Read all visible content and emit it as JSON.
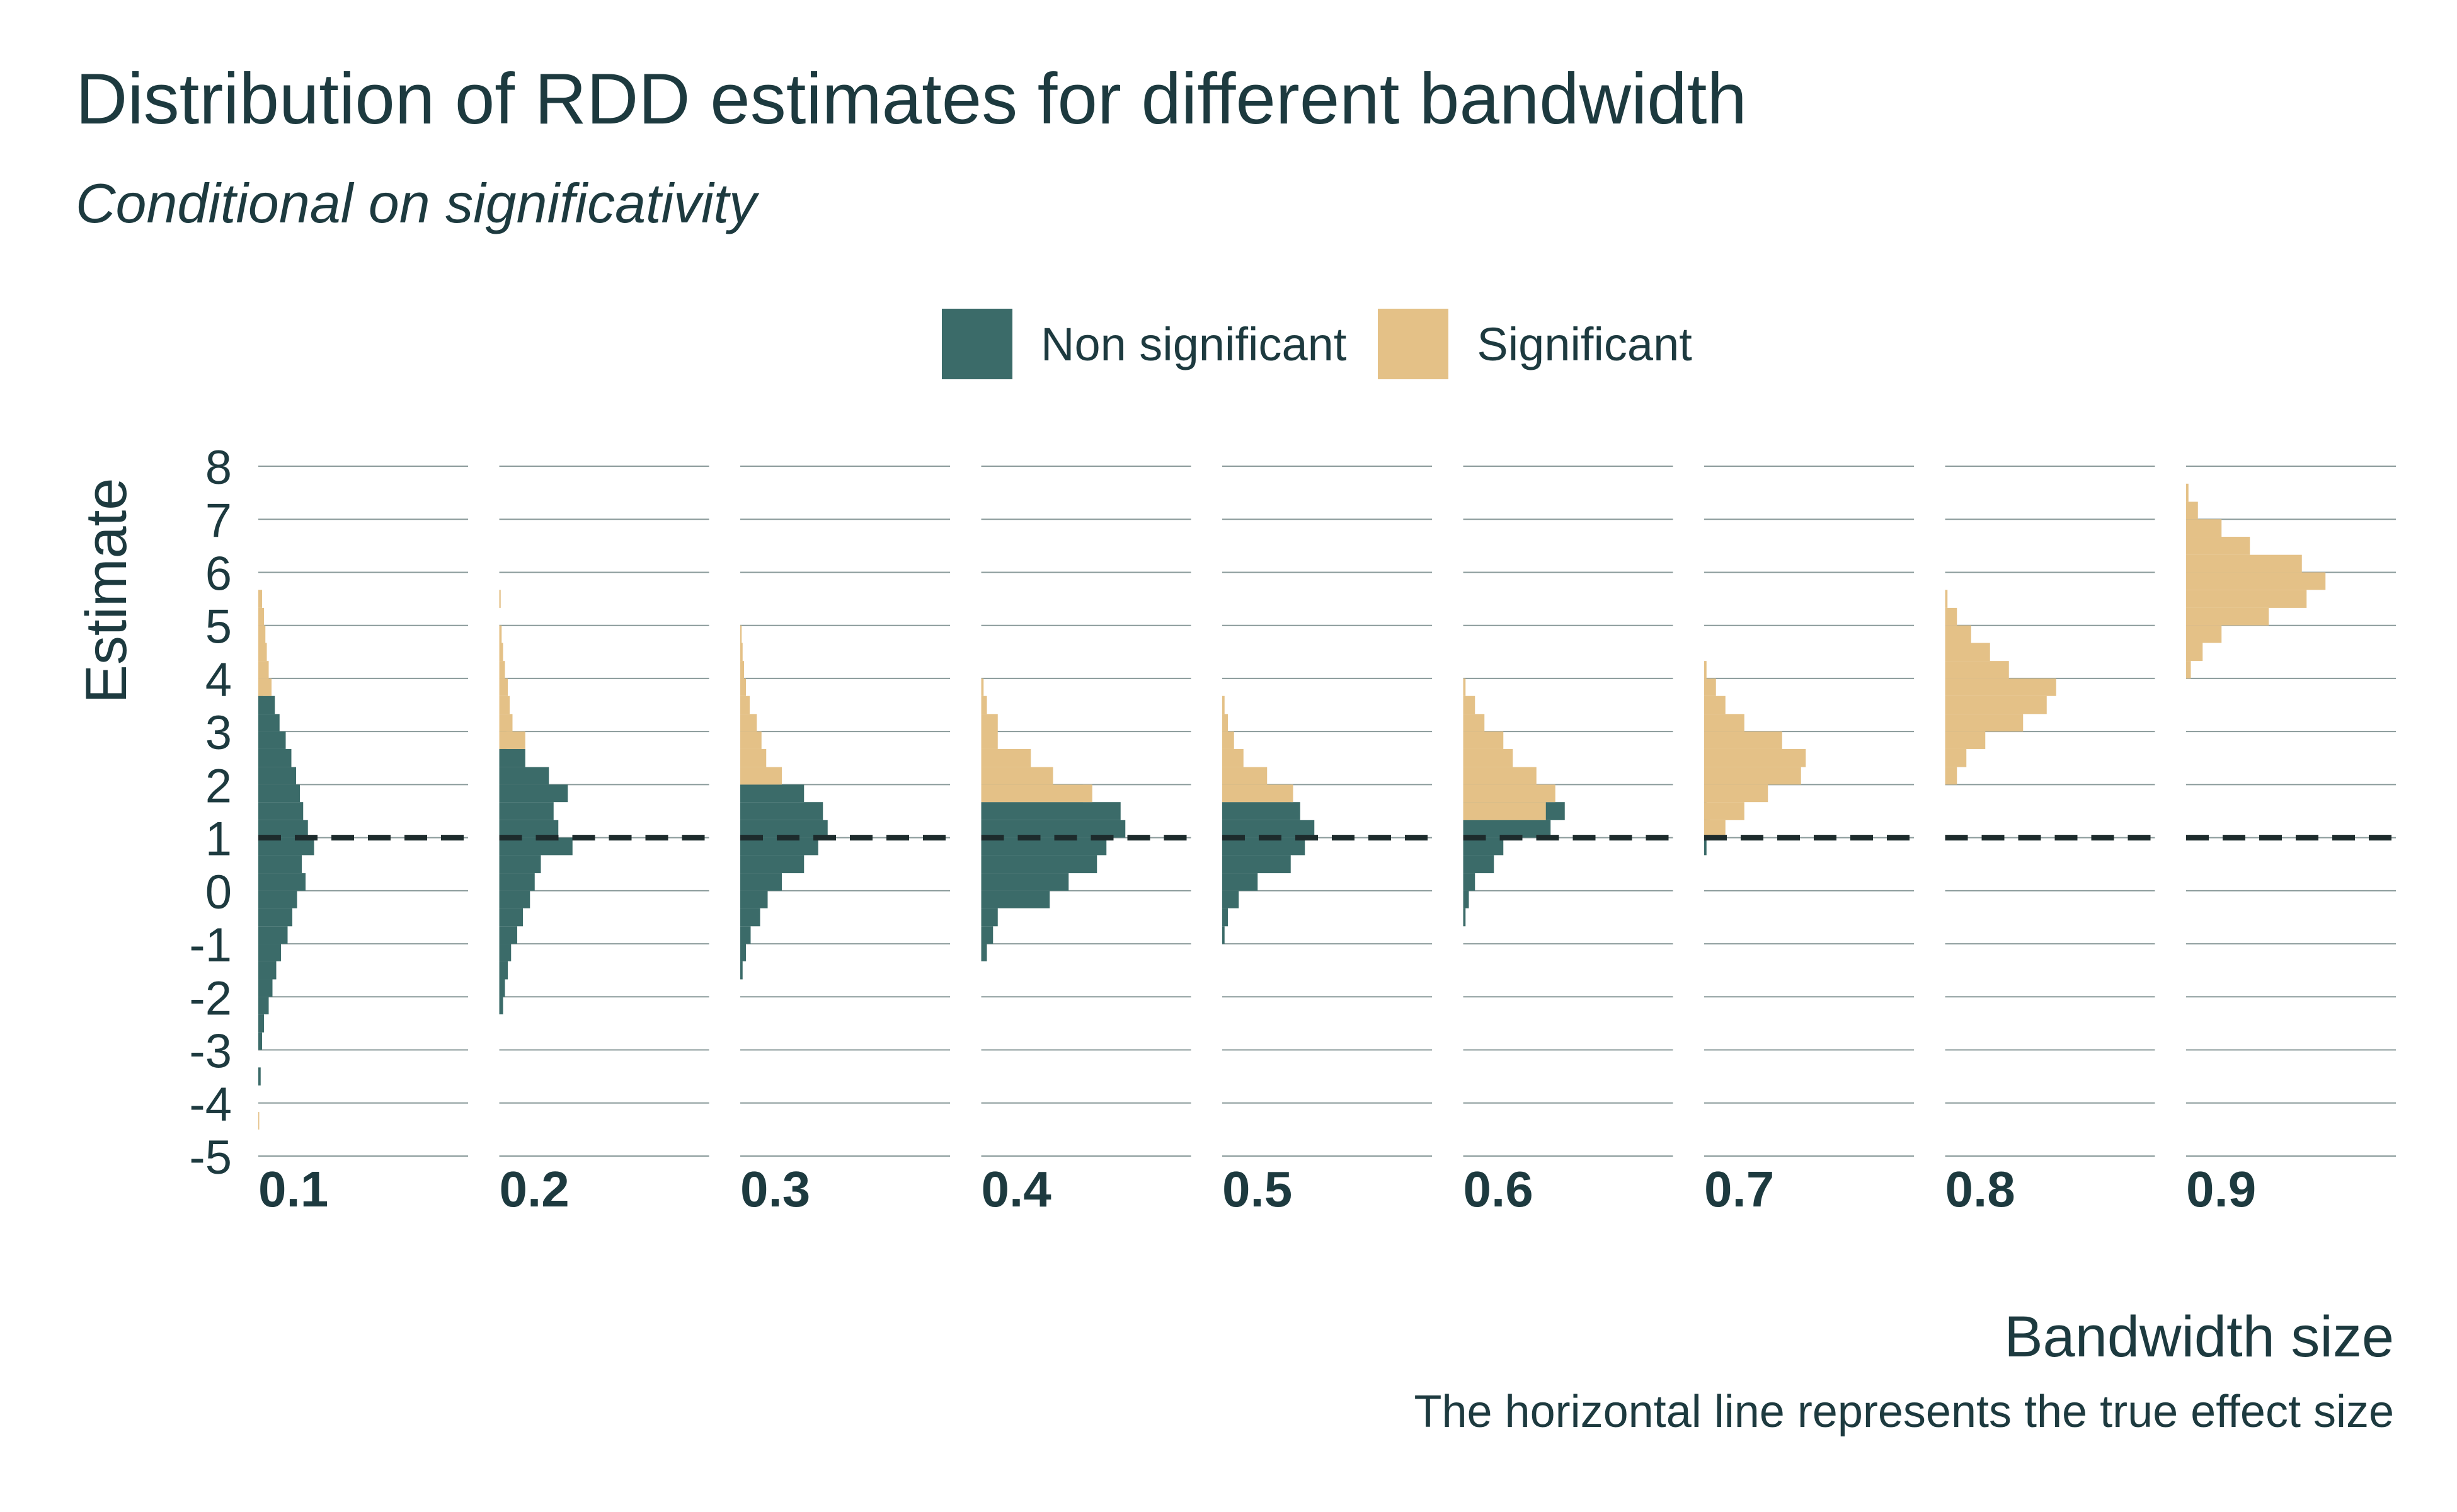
{
  "title": "Distribution of RDD estimates for different bandwidth",
  "subtitle": "Conditional on significativity",
  "legend": {
    "non_significant": "Non significant",
    "significant": "Significant"
  },
  "colors": {
    "non_significant": "#3b6b69",
    "significant": "#e4c187",
    "grid": "#8a9a9a",
    "true_effect_line": "#1d2b2c",
    "text": "#1d3a3f"
  },
  "x_title": "Bandwidth size",
  "caption": "The horizontal line represents the true effect size",
  "chart_data": {
    "type": "histogram",
    "ylabel": "Estimate",
    "xlabel": "Bandwidth size",
    "ylim": [
      -5,
      8
    ],
    "y_ticks": [
      "8",
      "7",
      "6",
      "5",
      "4",
      "3",
      "2",
      "1",
      "0",
      "-1",
      "-2",
      "-3",
      "-4",
      "-5"
    ],
    "true_effect": 1,
    "grid": true,
    "legend_position": "top",
    "bin_width": 0.333,
    "panels": [
      {
        "label": "0.1",
        "significant": [
          [
            -4.5,
            -4.17,
            0.02
          ],
          [
            5.33,
            5.67,
            0.08
          ],
          [
            5.0,
            5.33,
            0.12
          ],
          [
            4.67,
            5.0,
            0.15
          ],
          [
            4.33,
            4.67,
            0.18
          ],
          [
            4.0,
            4.33,
            0.22
          ],
          [
            3.67,
            4.0,
            0.28
          ]
        ],
        "non_significant": [
          [
            -3.67,
            -3.33,
            0.05
          ],
          [
            -3.0,
            -2.67,
            0.08
          ],
          [
            -2.67,
            -2.33,
            0.12
          ],
          [
            -2.33,
            -2.0,
            0.22
          ],
          [
            -2.0,
            -1.67,
            0.3
          ],
          [
            -1.67,
            -1.33,
            0.38
          ],
          [
            -1.33,
            -1.0,
            0.48
          ],
          [
            -1.0,
            -0.67,
            0.62
          ],
          [
            -0.67,
            -0.33,
            0.72
          ],
          [
            -0.33,
            0.0,
            0.82
          ],
          [
            0.0,
            0.33,
            1.0
          ],
          [
            0.33,
            0.67,
            0.92
          ],
          [
            0.67,
            1.0,
            1.18
          ],
          [
            1.0,
            1.33,
            1.05
          ],
          [
            1.33,
            1.67,
            0.95
          ],
          [
            1.67,
            2.0,
            0.88
          ],
          [
            2.0,
            2.33,
            0.8
          ],
          [
            2.33,
            2.67,
            0.7
          ],
          [
            2.67,
            3.0,
            0.58
          ],
          [
            3.0,
            3.33,
            0.45
          ],
          [
            3.33,
            3.67,
            0.35
          ],
          [
            3.67,
            4.0,
            0.1
          ]
        ]
      },
      {
        "label": "0.2",
        "significant": [
          [
            5.33,
            5.67,
            0.03
          ],
          [
            4.67,
            5.0,
            0.05
          ],
          [
            4.33,
            4.67,
            0.08
          ],
          [
            4.0,
            4.33,
            0.12
          ],
          [
            3.67,
            4.0,
            0.18
          ],
          [
            3.33,
            3.67,
            0.22
          ],
          [
            3.0,
            3.33,
            0.28
          ],
          [
            2.67,
            3.0,
            0.55
          ]
        ],
        "non_significant": [
          [
            -2.33,
            -2.0,
            0.08
          ],
          [
            -2.0,
            -1.67,
            0.12
          ],
          [
            -1.67,
            -1.33,
            0.18
          ],
          [
            -1.33,
            -1.0,
            0.25
          ],
          [
            -1.0,
            -0.67,
            0.38
          ],
          [
            -0.67,
            -0.33,
            0.5
          ],
          [
            -0.33,
            0.0,
            0.65
          ],
          [
            0.0,
            0.33,
            0.75
          ],
          [
            0.33,
            0.67,
            0.88
          ],
          [
            0.67,
            1.0,
            1.55
          ],
          [
            1.0,
            1.33,
            1.25
          ],
          [
            1.33,
            1.67,
            1.15
          ],
          [
            1.67,
            2.0,
            1.45
          ],
          [
            2.0,
            2.33,
            1.05
          ],
          [
            2.33,
            2.67,
            0.55
          ],
          [
            2.67,
            3.0,
            0.15
          ]
        ]
      },
      {
        "label": "0.3",
        "significant": [
          [
            4.67,
            5.0,
            0.03
          ],
          [
            4.33,
            4.67,
            0.05
          ],
          [
            4.0,
            4.33,
            0.08
          ],
          [
            3.67,
            4.0,
            0.12
          ],
          [
            3.33,
            3.67,
            0.2
          ],
          [
            3.0,
            3.33,
            0.35
          ],
          [
            2.67,
            3.0,
            0.45
          ],
          [
            2.33,
            2.67,
            0.55
          ],
          [
            2.0,
            2.33,
            0.88
          ]
        ],
        "non_significant": [
          [
            -1.67,
            -1.33,
            0.05
          ],
          [
            -1.33,
            -1.0,
            0.12
          ],
          [
            -1.0,
            -0.67,
            0.22
          ],
          [
            -0.67,
            -0.33,
            0.42
          ],
          [
            -0.33,
            0.0,
            0.58
          ],
          [
            0.0,
            0.33,
            0.88
          ],
          [
            0.33,
            0.67,
            1.35
          ],
          [
            0.67,
            1.0,
            1.65
          ],
          [
            1.0,
            1.33,
            1.85
          ],
          [
            1.33,
            1.67,
            1.75
          ],
          [
            1.67,
            2.0,
            1.35
          ]
        ]
      },
      {
        "label": "0.4",
        "significant": [
          [
            3.67,
            4.0,
            0.05
          ],
          [
            3.33,
            3.67,
            0.12
          ],
          [
            2.67,
            3.33,
            0.35
          ],
          [
            2.33,
            2.67,
            1.05
          ],
          [
            2.0,
            2.33,
            1.52
          ],
          [
            1.67,
            2.0,
            2.35
          ]
        ],
        "non_significant": [
          [
            -1.33,
            -1.0,
            0.12
          ],
          [
            -1.0,
            -0.67,
            0.25
          ],
          [
            -0.67,
            -0.33,
            0.35
          ],
          [
            -0.33,
            0.0,
            1.45
          ],
          [
            0.0,
            0.33,
            1.85
          ],
          [
            0.33,
            0.67,
            2.45
          ],
          [
            0.67,
            1.0,
            2.65
          ],
          [
            1.0,
            1.33,
            3.05
          ],
          [
            1.33,
            1.67,
            2.95
          ],
          [
            1.67,
            2.0,
            2.15
          ]
        ]
      },
      {
        "label": "0.5",
        "significant": [
          [
            3.33,
            3.67,
            0.05
          ],
          [
            3.0,
            3.33,
            0.12
          ],
          [
            2.67,
            3.0,
            0.25
          ],
          [
            2.33,
            2.67,
            0.45
          ],
          [
            2.0,
            2.33,
            0.95
          ],
          [
            1.67,
            2.0,
            1.5
          ]
        ],
        "non_significant": [
          [
            -1.0,
            -0.67,
            0.05
          ],
          [
            -0.67,
            -0.33,
            0.12
          ],
          [
            -0.33,
            0.0,
            0.35
          ],
          [
            0.0,
            0.33,
            0.75
          ],
          [
            0.33,
            0.67,
            1.45
          ],
          [
            0.67,
            1.0,
            1.75
          ],
          [
            1.0,
            1.33,
            1.95
          ],
          [
            1.33,
            1.67,
            1.65
          ],
          [
            1.67,
            2.0,
            1.45
          ]
        ]
      },
      {
        "label": "0.6",
        "significant": [
          [
            3.67,
            4.0,
            0.05
          ],
          [
            3.33,
            3.67,
            0.25
          ],
          [
            3.0,
            3.33,
            0.45
          ],
          [
            2.67,
            3.0,
            0.85
          ],
          [
            2.33,
            2.67,
            1.05
          ],
          [
            2.0,
            2.33,
            1.55
          ],
          [
            1.67,
            2.0,
            1.95
          ],
          [
            1.33,
            1.67,
            1.75
          ]
        ],
        "non_significant": [
          [
            -0.67,
            -0.33,
            0.05
          ],
          [
            -0.33,
            0.0,
            0.12
          ],
          [
            0.0,
            0.33,
            0.25
          ],
          [
            0.33,
            0.67,
            0.65
          ],
          [
            0.67,
            1.0,
            0.85
          ],
          [
            1.0,
            1.33,
            1.85
          ],
          [
            1.33,
            1.67,
            2.15
          ]
        ]
      },
      {
        "label": "0.7",
        "significant": [
          [
            4.0,
            4.33,
            0.05
          ],
          [
            3.67,
            4.0,
            0.25
          ],
          [
            3.33,
            3.67,
            0.45
          ],
          [
            3.0,
            3.33,
            0.85
          ],
          [
            2.67,
            3.0,
            1.65
          ],
          [
            2.33,
            2.67,
            2.15
          ],
          [
            2.0,
            2.33,
            2.05
          ],
          [
            1.67,
            2.0,
            1.35
          ],
          [
            1.33,
            1.67,
            0.85
          ],
          [
            1.0,
            1.33,
            0.45
          ]
        ],
        "non_significant": [
          [
            0.67,
            1.0,
            0.05
          ],
          [
            1.0,
            1.33,
            0.12
          ],
          [
            1.33,
            1.67,
            0.05
          ]
        ]
      },
      {
        "label": "0.8",
        "significant": [
          [
            5.33,
            5.67,
            0.05
          ],
          [
            5.0,
            5.33,
            0.25
          ],
          [
            4.67,
            5.0,
            0.55
          ],
          [
            4.33,
            4.67,
            0.95
          ],
          [
            4.0,
            4.33,
            1.35
          ],
          [
            3.67,
            4.0,
            2.35
          ],
          [
            3.33,
            3.67,
            2.15
          ],
          [
            3.0,
            3.33,
            1.65
          ],
          [
            2.67,
            3.0,
            0.85
          ],
          [
            2.33,
            2.67,
            0.45
          ],
          [
            2.0,
            2.33,
            0.25
          ]
        ],
        "non_significant": []
      },
      {
        "label": "0.9",
        "significant": [
          [
            7.33,
            7.67,
            0.05
          ],
          [
            7.0,
            7.33,
            0.25
          ],
          [
            6.67,
            7.0,
            0.75
          ],
          [
            6.33,
            6.67,
            1.35
          ],
          [
            6.0,
            6.33,
            2.45
          ],
          [
            5.67,
            6.0,
            2.95
          ],
          [
            5.33,
            5.67,
            2.55
          ],
          [
            5.0,
            5.33,
            1.75
          ],
          [
            4.67,
            5.0,
            0.75
          ],
          [
            4.33,
            4.67,
            0.35
          ],
          [
            4.0,
            4.33,
            0.1
          ]
        ],
        "non_significant": []
      }
    ]
  }
}
